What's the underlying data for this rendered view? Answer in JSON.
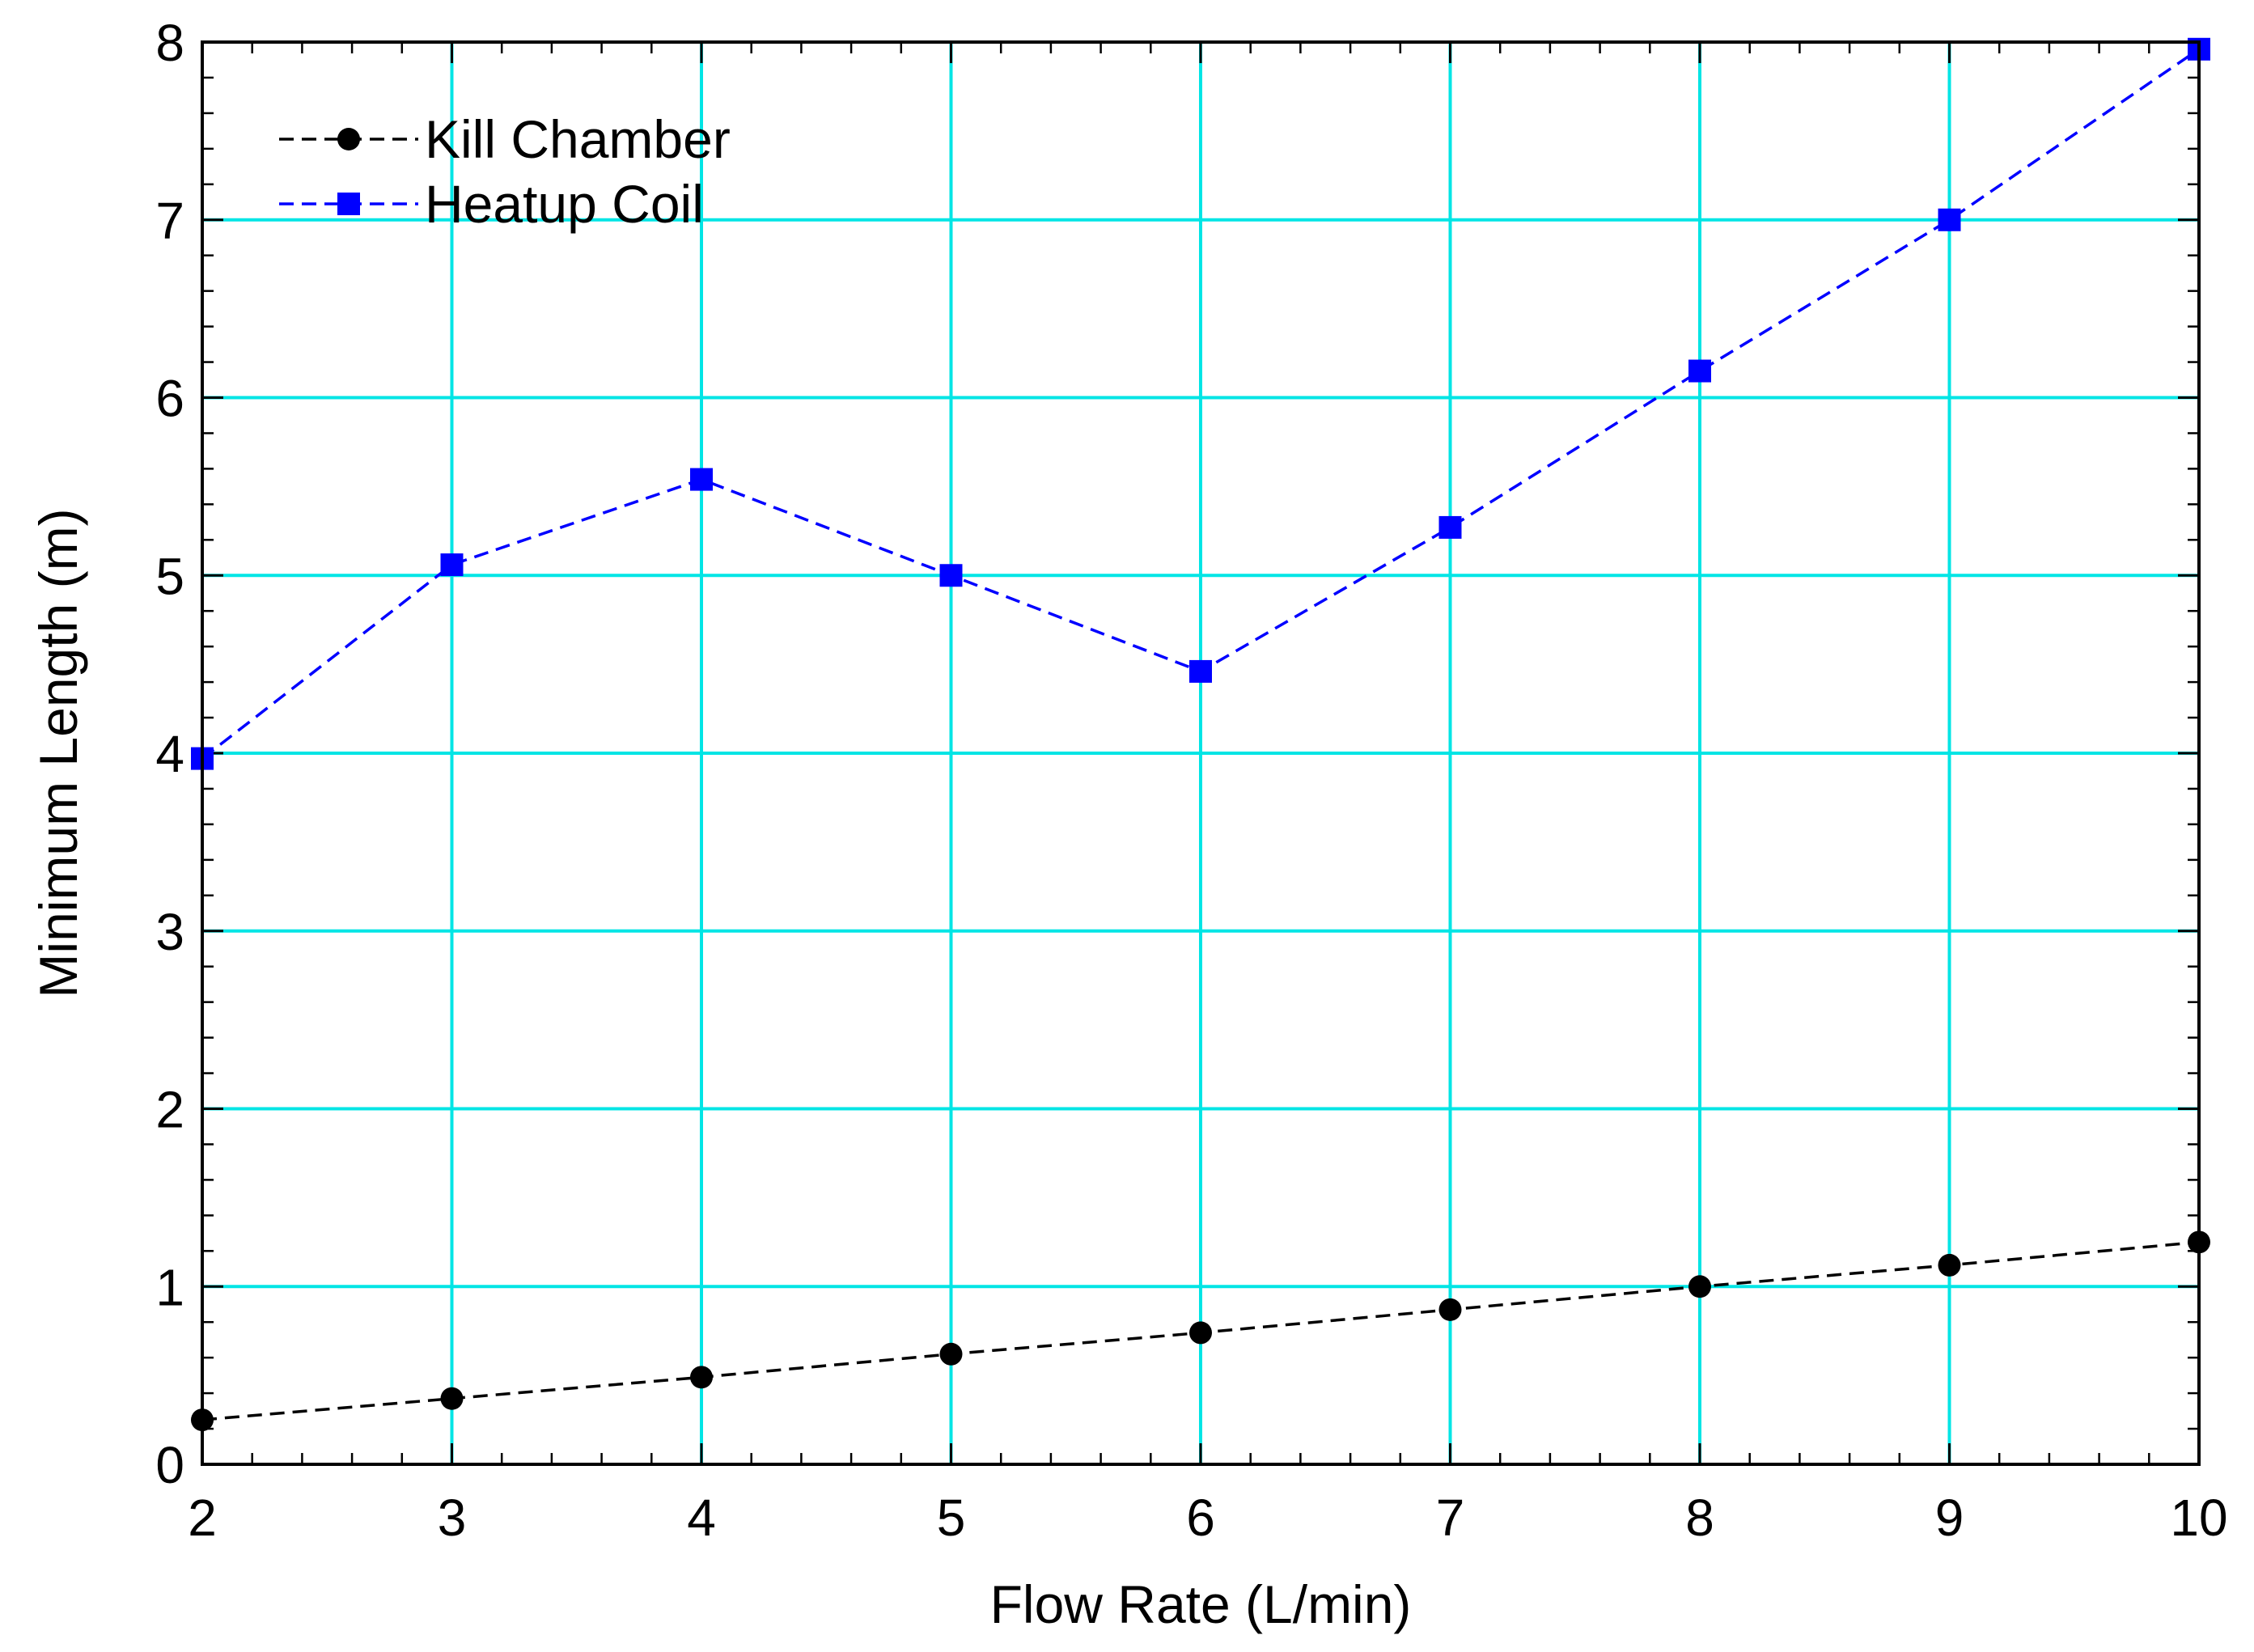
{
  "chart_data": {
    "type": "line",
    "xlabel": "Flow Rate (L/min)",
    "ylabel": "Minimum Length (m)",
    "xlim": [
      2,
      10
    ],
    "ylim": [
      0,
      8
    ],
    "x_ticks": [
      "2",
      "3",
      "4",
      "5",
      "6",
      "7",
      "8",
      "9",
      "10"
    ],
    "y_ticks": [
      "0",
      "1",
      "2",
      "3",
      "4",
      "5",
      "6",
      "7",
      "8"
    ],
    "grid": true,
    "grid_color": "#00e5e5",
    "legend_position": "top-left",
    "series": [
      {
        "name": "Kill Chamber",
        "color": "#000000",
        "marker": "circle",
        "line_style": "dashed",
        "x": [
          2,
          3,
          4,
          5,
          6,
          7,
          8,
          9,
          10
        ],
        "values": [
          0.25,
          0.37,
          0.49,
          0.62,
          0.74,
          0.87,
          1.0,
          1.12,
          1.25
        ]
      },
      {
        "name": "Heatup Coil",
        "color": "#0000ff",
        "marker": "square",
        "line_style": "dashed",
        "x": [
          2,
          3,
          4,
          5,
          6,
          7,
          8,
          9,
          10
        ],
        "values": [
          3.97,
          5.06,
          5.54,
          5.0,
          4.46,
          5.27,
          6.15,
          7.0,
          7.96
        ]
      }
    ]
  }
}
